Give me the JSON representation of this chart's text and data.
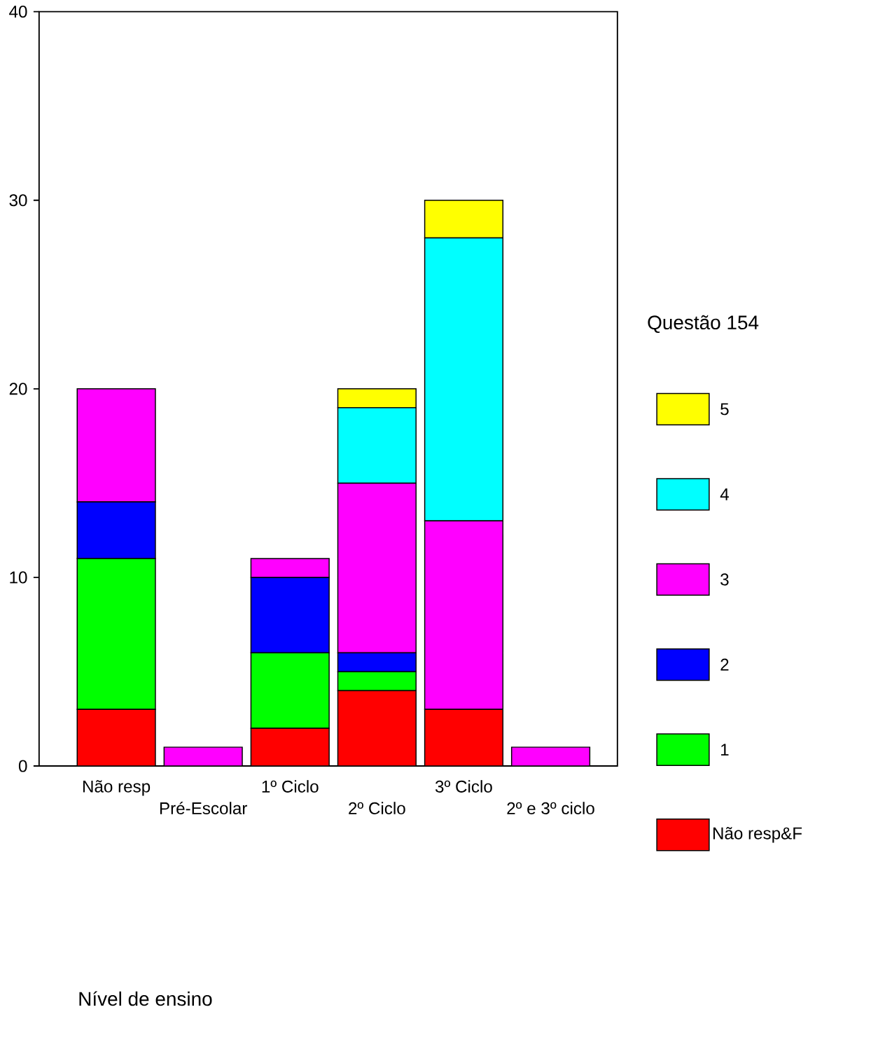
{
  "chart_data": {
    "type": "bar",
    "stacked": true,
    "annotations": [
      "Nível de ensino"
    ],
    "legend_title": "Questão 154",
    "legend": "right",
    "categories": [
      "Não resp",
      "Pré-Escolar",
      "1º Ciclo",
      "2º Ciclo",
      "3º Ciclo",
      "2º e 3º ciclo"
    ],
    "series": [
      {
        "name": "Não resp&F",
        "color": "#ff0000",
        "values": [
          3,
          0,
          2,
          4,
          3,
          0
        ]
      },
      {
        "name": "1",
        "color": "#00ff00",
        "values": [
          8,
          0,
          4,
          1,
          0,
          0
        ]
      },
      {
        "name": "2",
        "color": "#0000ff",
        "values": [
          3,
          0,
          4,
          1,
          0,
          0
        ]
      },
      {
        "name": "3",
        "color": "#ff00ff",
        "values": [
          6,
          1,
          1,
          9,
          10,
          1
        ]
      },
      {
        "name": "4",
        "color": "#00ffff",
        "values": [
          0,
          0,
          0,
          4,
          15,
          0
        ]
      },
      {
        "name": "5",
        "color": "#ffff00",
        "values": [
          0,
          0,
          0,
          1,
          2,
          0
        ]
      }
    ],
    "ylim": [
      0,
      40
    ],
    "yticks": [
      0,
      10,
      20,
      30,
      40
    ]
  }
}
